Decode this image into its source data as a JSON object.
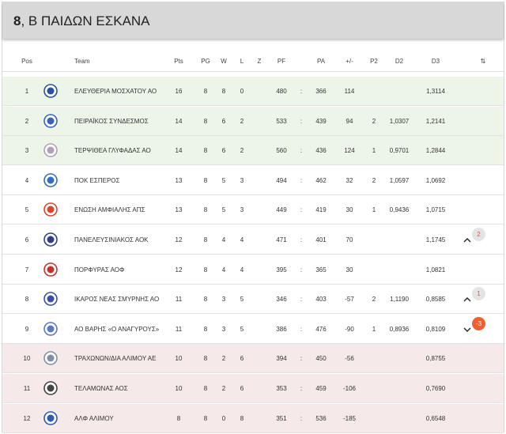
{
  "header": {
    "number": "8",
    "title": ", Β ΠΑΙΔΩΝ ΕΣΚΑΝΑ"
  },
  "columns": {
    "pos": "Pos",
    "team": "Team",
    "pts": "Pts",
    "pg": "PG",
    "w": "W",
    "l": "L",
    "z": "Z",
    "pf": "PF",
    "pa": "PA",
    "diff": "+/-",
    "p2": "P2",
    "d2": "D2",
    "d3": "D3",
    "sort_icon": "⇅"
  },
  "colors": {
    "green_row": "#edf5e9",
    "red_row": "#f5e9e9",
    "badge_down": "#ee6030",
    "badge_up_text": "#d65a5a"
  },
  "rows": [
    {
      "pos": "1",
      "team": "ΕΛΕΥΘΕΡΙΑ ΜΟΣΧΑΤΟΥ ΑΟ",
      "pts": "16",
      "pg": "8",
      "w": "8",
      "l": "0",
      "pf": "480",
      "sep": ":",
      "pa": "366",
      "diff": "114",
      "p2": "",
      "d2": "",
      "d3": "1,3114",
      "zone": "green",
      "logo": "#2a4fa3"
    },
    {
      "pos": "2",
      "team": "ΠΕΙΡΑΪΚΟΣ ΣΥΝΔΕΣΜΟΣ",
      "pts": "14",
      "pg": "8",
      "w": "6",
      "l": "2",
      "pf": "533",
      "sep": ":",
      "pa": "439",
      "diff": "94",
      "p2": "2",
      "d2": "1,0307",
      "d3": "1,2141",
      "zone": "green",
      "logo": "#3a63b5"
    },
    {
      "pos": "3",
      "team": "ΤΕΡΨΙΘΕΑ ΓΛΥΦΑΔΑΣ ΑΟ",
      "pts": "14",
      "pg": "8",
      "w": "6",
      "l": "2",
      "pf": "560",
      "sep": ":",
      "pa": "436",
      "diff": "124",
      "p2": "1",
      "d2": "0,9701",
      "d3": "1,2844",
      "zone": "green",
      "logo": "#b0a0b8"
    },
    {
      "pos": "4",
      "team": "ΠΟΚ ΕΣΠΕΡΟΣ",
      "pts": "13",
      "pg": "8",
      "w": "5",
      "l": "3",
      "pf": "494",
      "sep": ":",
      "pa": "462",
      "diff": "32",
      "p2": "2",
      "d2": "1,0597",
      "d3": "1,0692",
      "zone": "white",
      "logo": "#2f6fc4"
    },
    {
      "pos": "5",
      "team": "ΕΝΩΣΗ ΑΜΦΙΑΛΗΣ ΑΠΣ",
      "pts": "13",
      "pg": "8",
      "w": "5",
      "l": "3",
      "pf": "449",
      "sep": ":",
      "pa": "419",
      "diff": "30",
      "p2": "1",
      "d2": "0,9436",
      "d3": "1,0715",
      "zone": "white",
      "logo": "#d9472b"
    },
    {
      "pos": "6",
      "team": "ΠΑΝΕΛΕΥΣΙΝΙΑΚΟΣ ΑΟΚ",
      "pts": "12",
      "pg": "8",
      "w": "4",
      "l": "4",
      "pf": "471",
      "sep": ":",
      "pa": "401",
      "diff": "70",
      "p2": "",
      "d2": "",
      "d3": "1,1745",
      "zone": "white",
      "logo": "#2d3f8c",
      "trend": "up",
      "change": "2"
    },
    {
      "pos": "7",
      "team": "ΠΟΡΦΥΡΑΣ ΑΟΦ",
      "pts": "12",
      "pg": "8",
      "w": "4",
      "l": "4",
      "pf": "395",
      "sep": ":",
      "pa": "365",
      "diff": "30",
      "p2": "",
      "d2": "",
      "d3": "1,0821",
      "zone": "white",
      "logo": "#c2332b"
    },
    {
      "pos": "8",
      "team": "ΙΚΑΡΟΣ ΝΕΑΣ ΣΜΥΡΝΗΣ ΑΟ",
      "pts": "11",
      "pg": "8",
      "w": "3",
      "l": "5",
      "pf": "346",
      "sep": ":",
      "pa": "403",
      "diff": "-57",
      "p2": "2",
      "d2": "1,1190",
      "d3": "0,8585",
      "zone": "white",
      "logo": "#3b4fa8",
      "trend": "up",
      "change": "1"
    },
    {
      "pos": "9",
      "team": "ΑΟ ΒΑΡΗΣ «Ο ΑΝΑΓΥΡΟΥΣ»",
      "pts": "11",
      "pg": "8",
      "w": "3",
      "l": "5",
      "pf": "386",
      "sep": ":",
      "pa": "476",
      "diff": "-90",
      "p2": "1",
      "d2": "0,8936",
      "d3": "0,8109",
      "zone": "white",
      "logo": "#5a78c8",
      "trend": "down",
      "change": "-3"
    },
    {
      "pos": "10",
      "team": "ΤΡΑΧΩΝΩΝ/ΔΙΑ ΑΛΙΜΟΥ ΑΕ",
      "pts": "10",
      "pg": "8",
      "w": "2",
      "l": "6",
      "pf": "394",
      "sep": ":",
      "pa": "450",
      "diff": "-56",
      "p2": "",
      "d2": "",
      "d3": "0,8755",
      "zone": "red",
      "logo": "#7f8fa8"
    },
    {
      "pos": "11",
      "team": "ΤΕΛΑΜΩΝΑΣ ΑΟΣ",
      "pts": "10",
      "pg": "8",
      "w": "2",
      "l": "6",
      "pf": "353",
      "sep": ":",
      "pa": "459",
      "diff": "-106",
      "p2": "",
      "d2": "",
      "d3": "0,7690",
      "zone": "red",
      "logo": "#444444"
    },
    {
      "pos": "12",
      "team": "ΑΛΦ ΑΛΙΜΟΥ",
      "pts": "8",
      "pg": "8",
      "w": "0",
      "l": "8",
      "pf": "351",
      "sep": ":",
      "pa": "536",
      "diff": "-185",
      "p2": "",
      "d2": "",
      "d3": "0,6548",
      "zone": "red",
      "logo": "#2b5bb5"
    }
  ]
}
